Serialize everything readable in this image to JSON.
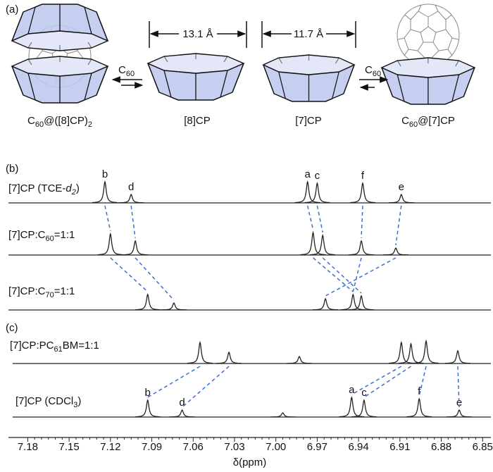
{
  "panel_a": {
    "label": "(a)",
    "dimensions": [
      "13.1 Å",
      "11.7 Å"
    ],
    "reagents": [
      [
        {
          "text": "C"
        },
        {
          "text": "60",
          "sub": true
        }
      ],
      [
        {
          "text": "C"
        },
        {
          "text": "60",
          "sub": true
        }
      ]
    ],
    "compounds": [
      [
        {
          "text": "C"
        },
        {
          "text": "60",
          "sub": true
        },
        {
          "text": "@([8]CP)"
        },
        {
          "text": "2",
          "sub": true
        }
      ],
      [
        {
          "text": "[8]CP"
        }
      ],
      [
        {
          "text": "[7]CP"
        }
      ],
      [
        {
          "text": "C"
        },
        {
          "text": "60",
          "sub": true
        },
        {
          "text": "@[7]CP"
        }
      ]
    ]
  },
  "chart_data": {
    "type": "nmr",
    "panel_labels": [
      "(b)",
      "(c)"
    ],
    "xlabel": "δ(ppm)",
    "xlim": [
      7.194,
      6.844
    ],
    "xticks": [
      7.18,
      7.15,
      7.12,
      7.09,
      7.06,
      7.03,
      {
        "value": 7,
        "label": "7.00"
      },
      6.97,
      6.94,
      6.91,
      6.88,
      6.85
    ],
    "line_color": "#222222",
    "link_color": "#3a6fd0",
    "label_color": "#2f5fbf",
    "spectra": [
      {
        "name": [
          {
            "text": "[7]CP (TCE-"
          },
          {
            "text": "d",
            "italic": true
          },
          {
            "text": "2",
            "sub": true,
            "italic": true
          },
          {
            "text": ")"
          }
        ],
        "x": [
          7.124,
          7.105,
          6.977,
          6.97,
          6.937,
          6.909
        ],
        "values": [
          30,
          12,
          30,
          28,
          28,
          12
        ],
        "peak_labels": [
          "b",
          "d",
          "a",
          "c",
          "f",
          "e"
        ]
      },
      {
        "name": [
          {
            "text": "[7]CP:C"
          },
          {
            "text": "60",
            "sub": true
          },
          {
            "text": "=1:1"
          }
        ],
        "x": [
          7.12,
          7.102,
          6.973,
          6.966,
          6.938,
          6.913
        ],
        "values": [
          30,
          20,
          32,
          28,
          20,
          10
        ]
      },
      {
        "name": [
          {
            "text": "[7]CP:C"
          },
          {
            "text": "70",
            "sub": true
          },
          {
            "text": "=1:1"
          }
        ],
        "x": [
          7.093,
          7.074,
          6.964,
          6.944,
          6.938
        ],
        "values": [
          22,
          10,
          16,
          22,
          20
        ]
      },
      {
        "name": [
          {
            "text": "[7]CP:PC"
          },
          {
            "text": "61",
            "sub": true
          },
          {
            "text": "BM=1:1"
          }
        ],
        "x": [
          7.055,
          7.034,
          6.983,
          6.909,
          6.902,
          6.891,
          6.868
        ],
        "values": [
          30,
          16,
          10,
          30,
          28,
          32,
          18
        ]
      },
      {
        "name": [
          {
            "text": "[7]CP (CDCl"
          },
          {
            "text": "3",
            "sub": true
          },
          {
            "text": ")"
          }
        ],
        "x": [
          7.093,
          7.068,
          6.995,
          6.945,
          6.936,
          6.896,
          6.867
        ],
        "values": [
          24,
          10,
          6,
          28,
          24,
          26,
          10
        ],
        "peak_labels": [
          "b",
          "d",
          null,
          "a",
          "c",
          "f",
          "e"
        ]
      }
    ]
  }
}
